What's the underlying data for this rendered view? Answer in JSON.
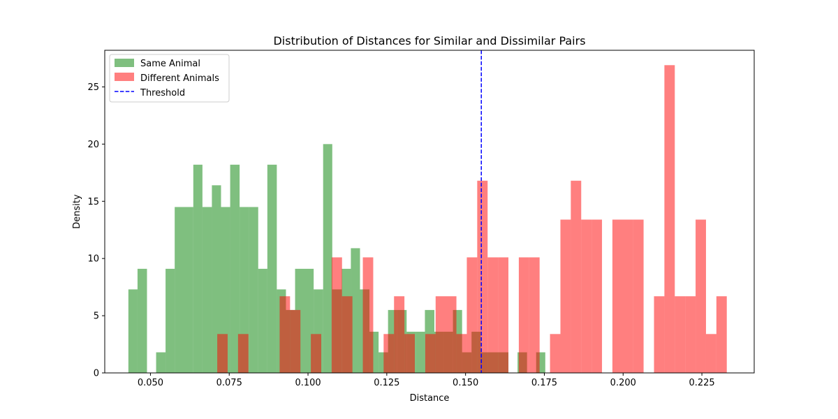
{
  "chart_data": {
    "type": "histogram",
    "title": "Distribution of Distances for Similar and Dissimilar Pairs",
    "xlabel": "Distance",
    "ylabel": "Density",
    "xlim": [
      0.0355,
      0.2416
    ],
    "ylim": [
      0,
      28.2
    ],
    "xticks": [
      0.05,
      0.075,
      0.1,
      0.125,
      0.15,
      0.175,
      0.2,
      0.225
    ],
    "xtick_labels": [
      "0.050",
      "0.075",
      "0.100",
      "0.125",
      "0.150",
      "0.175",
      "0.200",
      "0.225"
    ],
    "yticks": [
      0,
      5,
      10,
      15,
      20,
      25
    ],
    "ytick_labels": [
      "0",
      "5",
      "10",
      "15",
      "20",
      "25"
    ],
    "legend_position": "top-left",
    "threshold": {
      "name": "Threshold",
      "x": 0.155,
      "color": "#0000ff",
      "style": "dashed"
    },
    "series": [
      {
        "name": "Same Animal",
        "color": "#008000",
        "alpha": 0.5,
        "bins": [
          [
            0.043,
            0.0459,
            7.3
          ],
          [
            0.0459,
            0.0489,
            9.1
          ],
          [
            0.0518,
            0.0548,
            1.8
          ],
          [
            0.0548,
            0.0577,
            9.1
          ],
          [
            0.0577,
            0.0636,
            14.5
          ],
          [
            0.0636,
            0.0665,
            18.2
          ],
          [
            0.0665,
            0.0695,
            14.5
          ],
          [
            0.0695,
            0.0724,
            16.4
          ],
          [
            0.0724,
            0.0753,
            14.5
          ],
          [
            0.0753,
            0.0783,
            18.2
          ],
          [
            0.0783,
            0.0812,
            14.5
          ],
          [
            0.0812,
            0.0842,
            14.5
          ],
          [
            0.0842,
            0.0871,
            9.1
          ],
          [
            0.0871,
            0.0901,
            18.2
          ],
          [
            0.0901,
            0.093,
            7.3
          ],
          [
            0.093,
            0.0959,
            5.5
          ],
          [
            0.0959,
            0.1018,
            9.1
          ],
          [
            0.1018,
            0.1048,
            7.3
          ],
          [
            0.1048,
            0.1077,
            20.0
          ],
          [
            0.1077,
            0.1107,
            7.3
          ],
          [
            0.1107,
            0.1136,
            9.1
          ],
          [
            0.1136,
            0.1165,
            10.9
          ],
          [
            0.1165,
            0.1195,
            7.3
          ],
          [
            0.1195,
            0.1224,
            3.6
          ],
          [
            0.1224,
            0.1254,
            1.8
          ],
          [
            0.1254,
            0.1283,
            5.5
          ],
          [
            0.1283,
            0.1313,
            5.5
          ],
          [
            0.1313,
            0.1342,
            3.6
          ],
          [
            0.1342,
            0.1371,
            3.6
          ],
          [
            0.1371,
            0.1401,
            5.5
          ],
          [
            0.1401,
            0.143,
            3.6
          ],
          [
            0.143,
            0.146,
            3.6
          ],
          [
            0.146,
            0.1489,
            5.5
          ],
          [
            0.1489,
            0.1519,
            1.8
          ],
          [
            0.1519,
            0.1548,
            3.6
          ],
          [
            0.1548,
            0.1577,
            1.8
          ],
          [
            0.1577,
            0.1607,
            1.8
          ],
          [
            0.1607,
            0.1636,
            1.8
          ],
          [
            0.1665,
            0.1695,
            1.8
          ],
          [
            0.1724,
            0.1753,
            1.8
          ]
        ]
      },
      {
        "name": "Different Animals",
        "color": "#ff0000",
        "alpha": 0.5,
        "bins": [
          [
            0.0712,
            0.0745,
            3.4
          ],
          [
            0.0778,
            0.0811,
            3.4
          ],
          [
            0.091,
            0.0943,
            6.7
          ],
          [
            0.0943,
            0.0976,
            5.5
          ],
          [
            0.1009,
            0.1042,
            3.4
          ],
          [
            0.1075,
            0.1108,
            10.1
          ],
          [
            0.1108,
            0.1141,
            6.7
          ],
          [
            0.1174,
            0.1207,
            10.1
          ],
          [
            0.124,
            0.1273,
            3.4
          ],
          [
            0.1273,
            0.1306,
            6.7
          ],
          [
            0.1306,
            0.1339,
            3.4
          ],
          [
            0.1372,
            0.1405,
            3.4
          ],
          [
            0.1405,
            0.1471,
            6.7
          ],
          [
            0.1471,
            0.1504,
            3.4
          ],
          [
            0.1504,
            0.1537,
            10.1
          ],
          [
            0.1537,
            0.157,
            16.8
          ],
          [
            0.157,
            0.1603,
            10.1
          ],
          [
            0.1603,
            0.1636,
            10.1
          ],
          [
            0.1669,
            0.1702,
            10.1
          ],
          [
            0.1702,
            0.1735,
            10.1
          ],
          [
            0.1768,
            0.1801,
            3.4
          ],
          [
            0.1801,
            0.1834,
            13.4
          ],
          [
            0.1834,
            0.1867,
            16.8
          ],
          [
            0.1867,
            0.19,
            13.4
          ],
          [
            0.19,
            0.1933,
            13.4
          ],
          [
            0.1966,
            0.2032,
            13.4
          ],
          [
            0.2032,
            0.2065,
            13.4
          ],
          [
            0.2098,
            0.2131,
            6.7
          ],
          [
            0.2131,
            0.2164,
            26.9
          ],
          [
            0.2164,
            0.2197,
            6.7
          ],
          [
            0.2197,
            0.223,
            6.7
          ],
          [
            0.223,
            0.2263,
            13.4
          ],
          [
            0.2263,
            0.2296,
            3.4
          ],
          [
            0.2296,
            0.2329,
            6.7
          ]
        ]
      }
    ]
  }
}
